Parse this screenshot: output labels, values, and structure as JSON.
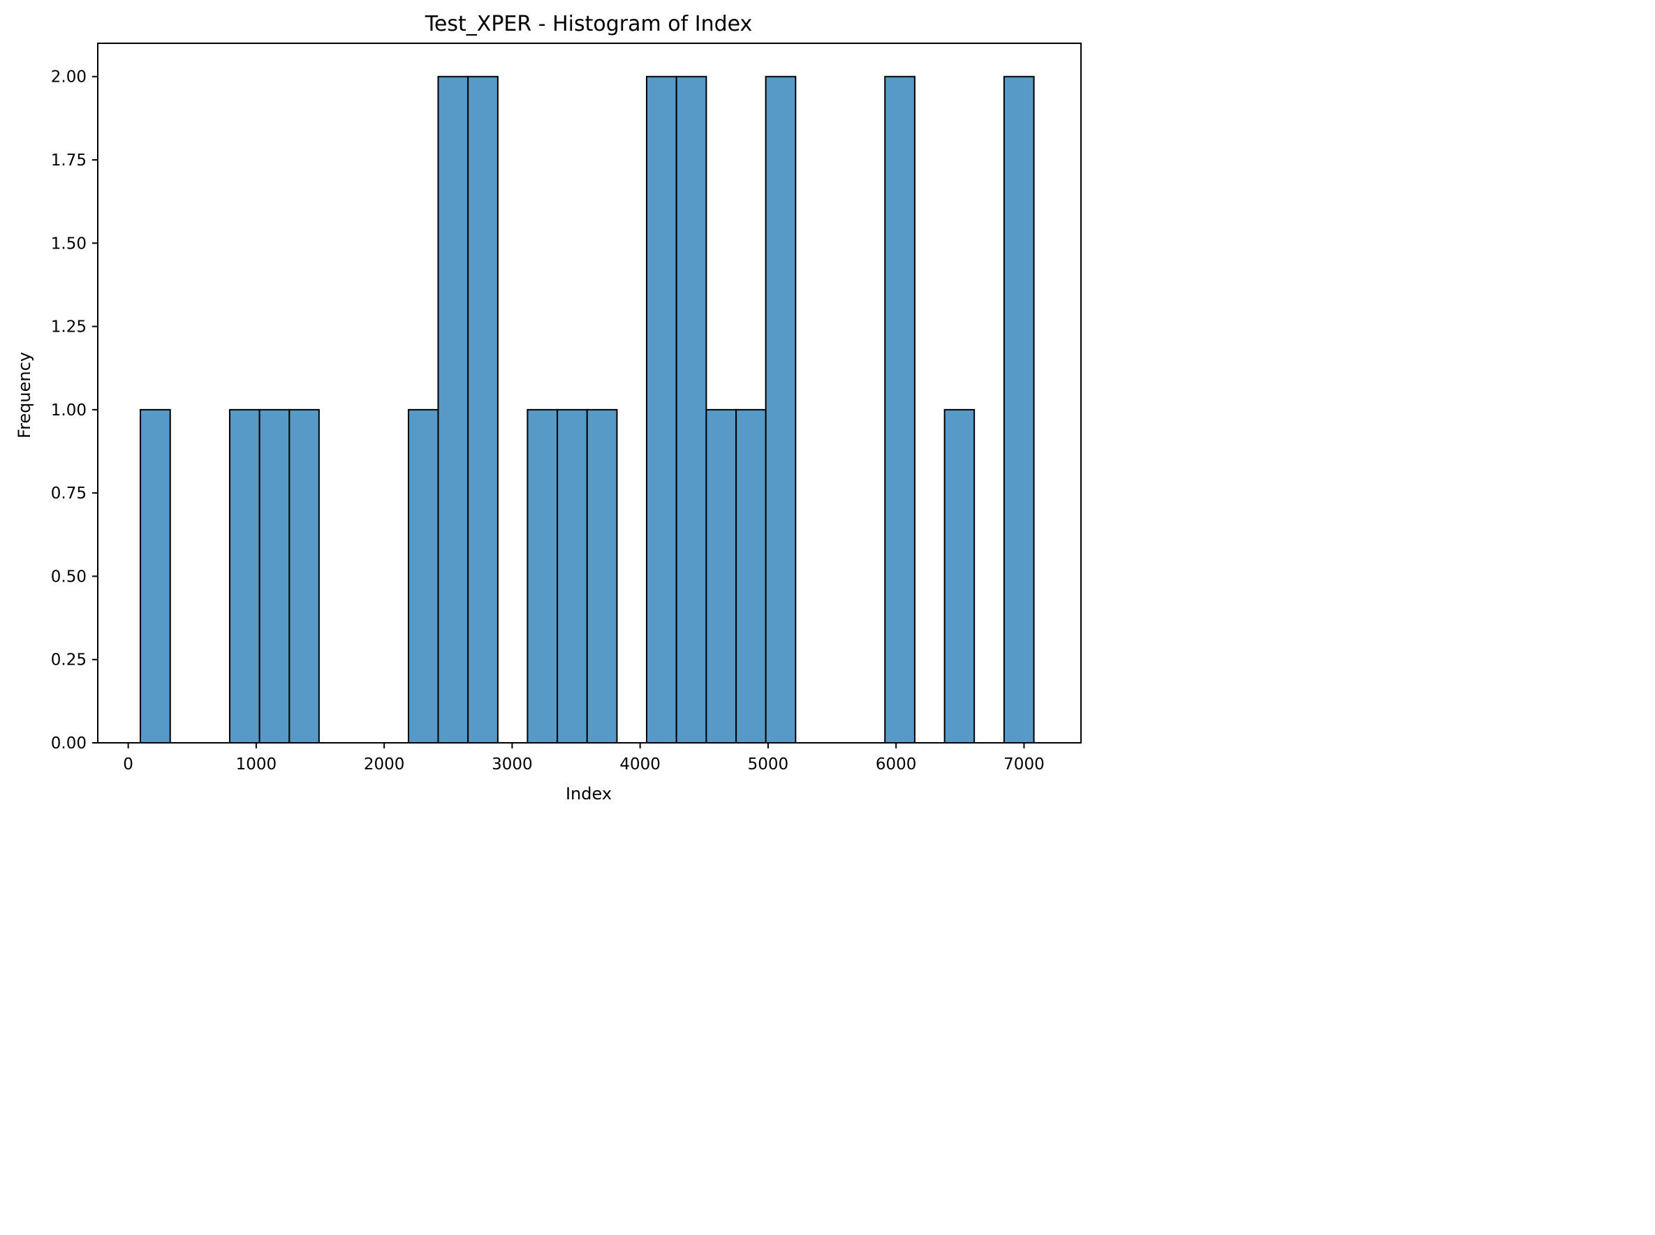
{
  "chart_data": {
    "type": "bar",
    "title": "Test_XPER - Histogram of Index",
    "xlabel": "Index",
    "ylabel": "Frequency",
    "xlim": [
      -238,
      7445
    ],
    "ylim": [
      0,
      2.1
    ],
    "x_ticks": [
      0,
      1000,
      2000,
      3000,
      4000,
      5000,
      6000,
      7000
    ],
    "x_tick_labels": [
      "0",
      "1000",
      "2000",
      "3000",
      "4000",
      "5000",
      "6000",
      "7000"
    ],
    "y_ticks": [
      0,
      0.25,
      0.5,
      0.75,
      1.0,
      1.25,
      1.5,
      1.75,
      2.0
    ],
    "y_tick_labels": [
      "0.00",
      "0.25",
      "0.50",
      "0.75",
      "1.00",
      "1.25",
      "1.50",
      "1.75",
      "2.00"
    ],
    "bin_edges": [
      95,
      328,
      560,
      793,
      1026,
      1259,
      1491,
      1724,
      1957,
      2190,
      2422,
      2655,
      2888,
      3120,
      3353,
      3586,
      3819,
      4051,
      4284,
      4517,
      4750,
      4982,
      5215,
      5448,
      5680,
      5913,
      6146,
      6379,
      6611,
      6844,
      7077
    ],
    "values": [
      1,
      0,
      0,
      1,
      1,
      1,
      0,
      0,
      0,
      1,
      2,
      2,
      0,
      1,
      1,
      1,
      0,
      2,
      2,
      1,
      1,
      2,
      0,
      0,
      0,
      2,
      0,
      1,
      0,
      2
    ],
    "bar_color": "#5799c7",
    "edge_color": "#000000",
    "grid": false,
    "legend": false
  }
}
